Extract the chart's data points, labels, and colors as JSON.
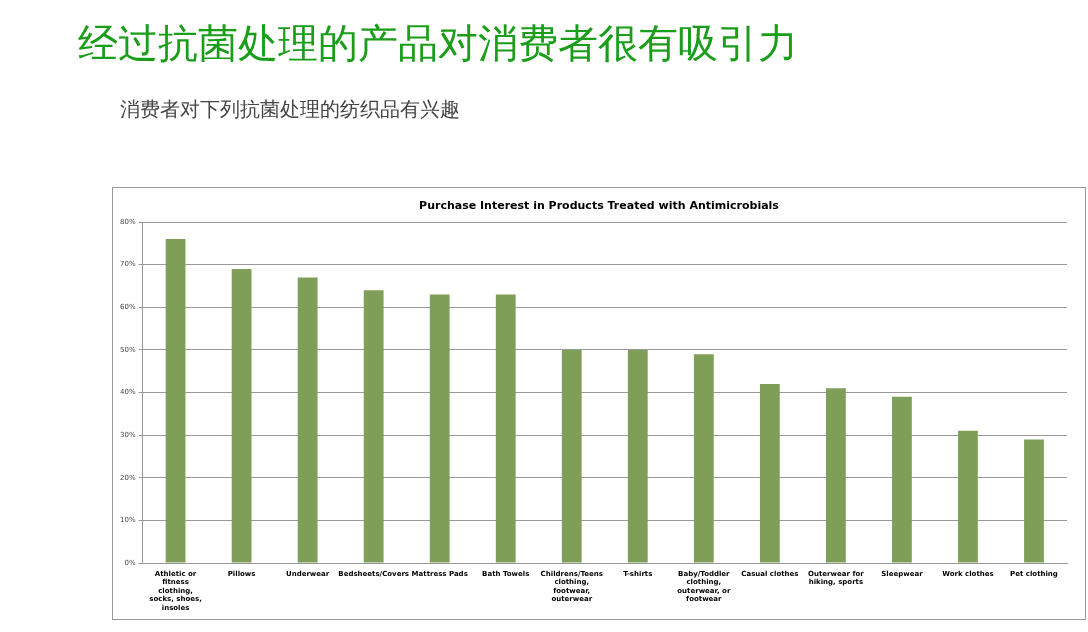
{
  "chart_data": {
    "type": "bar",
    "title": "经过抗菌处理的产品对消费者很有吸引力",
    "subtitle": "消费者对下列抗菌处理的纺织品有兴趣",
    "annotations": [
      "Purchase Interest in Products Treated with Antimicrobials"
    ],
    "categories": [
      "Athletic or fitness clothing, socks, shoes, insoles",
      "Pillows",
      "Underwear",
      "Bedsheets/Covers",
      "Mattress Pads",
      "Bath Towels",
      "Childrens/Teens clothing, footwear, outerwear",
      "T-shirts",
      "Baby/Toddler clothing, outerwear, or footwear",
      "Casual clothes",
      "Outerwear for hiking, sports",
      "Sleepwear",
      "Work clothes",
      "Pet clothing"
    ],
    "values": [
      76,
      69,
      67,
      64,
      63,
      63,
      50,
      50,
      49,
      42,
      41,
      39,
      31,
      29
    ],
    "color": "#7f9f59",
    "ylim": [
      0,
      80
    ],
    "yticks": [
      {
        "value": 0,
        "label": "0%"
      },
      {
        "value": 10,
        "label": "10%"
      },
      {
        "value": 20,
        "label": "20%"
      },
      {
        "value": 30,
        "label": "30%"
      },
      {
        "value": 40,
        "label": "40%"
      },
      {
        "value": 50,
        "label": "50%"
      },
      {
        "value": 60,
        "label": "60%"
      },
      {
        "value": 70,
        "label": "70%"
      },
      {
        "value": 80,
        "label": "80%"
      }
    ],
    "grid": "y",
    "legend": false
  }
}
